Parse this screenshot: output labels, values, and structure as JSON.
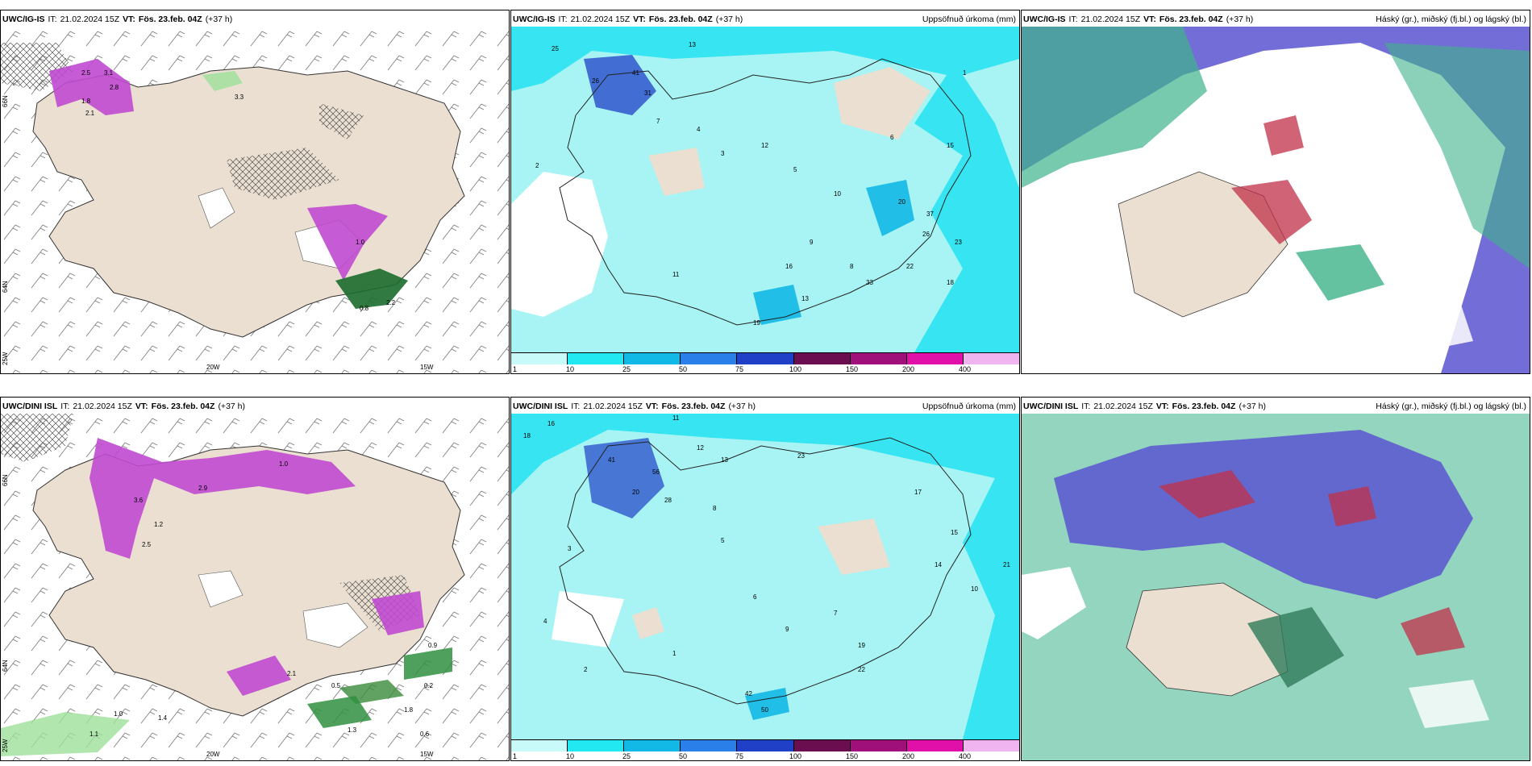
{
  "panels": [
    {
      "model": "UWC/IG-IS",
      "it_label": "IT:",
      "it_value": "21.02.2024 15Z",
      "vt_label": "VT:",
      "vt_value": "Fös. 23.feb. 04Z",
      "lead": "(+37 h)",
      "title_right": "",
      "type": "precip-type",
      "values": [
        "2.5",
        "3.1",
        "2.8",
        "1.8",
        "2.1",
        "3.3",
        "0.8",
        "1.0",
        "2.2"
      ],
      "lon_labels": [
        "20W",
        "15W"
      ],
      "lat_labels": [
        "66N",
        "64N",
        "25W"
      ]
    },
    {
      "model": "UWC/IG-IS",
      "it_label": "IT:",
      "it_value": "21.02.2024 15Z",
      "vt_label": "VT:",
      "vt_value": "Fös. 23.feb. 04Z",
      "lead": "(+37 h)",
      "title_right": "Uppsöfnuð úrkoma (mm)",
      "type": "accum-precip",
      "values": [
        "25",
        "13",
        "41",
        "31",
        "26",
        "7",
        "4",
        "2",
        "3",
        "12",
        "5",
        "10",
        "6",
        "15",
        "20",
        "37",
        "26",
        "23",
        "22",
        "18",
        "19",
        "33",
        "13",
        "16",
        "8",
        "9",
        "1",
        "11"
      ],
      "colorbar": [
        "1",
        "10",
        "25",
        "50",
        "75",
        "100",
        "150",
        "200",
        "400"
      ]
    },
    {
      "model": "UWC/IG-IS",
      "it_label": "IT:",
      "it_value": "21.02.2024 15Z",
      "vt_label": "VT:",
      "vt_value": "Fös. 23.feb. 04Z",
      "lead": "(+37 h)",
      "title_right": "Háský (gr.), miðský (fj.bl.) og lágský (bl.)",
      "type": "clouds"
    },
    {
      "model": "UWC/DINI ISL",
      "it_label": "IT:",
      "it_value": "21.02.2024 15Z",
      "vt_label": "VT:",
      "vt_value": "Fös. 23.feb. 04Z",
      "lead": "(+37 h)",
      "title_right": "",
      "type": "precip-type",
      "values": [
        "3.6",
        "2.9",
        "2.5",
        "1.2",
        "1.0",
        "0.9",
        "0.5",
        "1.4",
        "1.1",
        "1.3",
        "0.2",
        "0.6",
        "1.0",
        "2.1",
        "1.8"
      ],
      "lon_labels": [
        "20W",
        "15W"
      ],
      "lat_labels": [
        "66N",
        "64N",
        "25W"
      ]
    },
    {
      "model": "UWC/DINI ISL",
      "it_label": "IT:",
      "it_value": "21.02.2024 15Z",
      "vt_label": "VT:",
      "vt_value": "Fös. 23.feb. 04Z",
      "lead": "(+37 h)",
      "title_right": "Uppsöfnuð úrkoma (mm)",
      "type": "accum-precip",
      "values": [
        "18",
        "16",
        "11",
        "12",
        "13",
        "41",
        "56",
        "20",
        "28",
        "23",
        "17",
        "15",
        "10",
        "14",
        "8",
        "5",
        "3",
        "2",
        "4",
        "6",
        "42",
        "50",
        "19",
        "21",
        "22",
        "9",
        "7",
        "1"
      ],
      "colorbar": [
        "1",
        "10",
        "25",
        "50",
        "75",
        "100",
        "150",
        "200",
        "400"
      ]
    },
    {
      "model": "UWC/DINI ISL",
      "it_label": "IT:",
      "it_value": "21.02.2024 15Z",
      "vt_label": "VT:",
      "vt_value": "Fös. 23.feb. 04Z",
      "lead": "(+37 h)",
      "title_right": "Háský (gr.), miðský (fj.bl.) og lágský (bl.)",
      "type": "clouds"
    }
  ],
  "colors": {
    "land": "#eadfd0",
    "precip_pink": "#c04ad0",
    "precip_green": "#2f8f3f",
    "accum_bg": "#a8f4f4",
    "accum_mid": "#22e2f0",
    "accum_blue": "#1aa3e0",
    "cloud_high": "#3db38a",
    "cloud_mid": "#5a55d0",
    "cloud_low": "#c03048"
  },
  "colorbar_colors": [
    "#c8fafa",
    "#22e8f2",
    "#12b8e6",
    "#2a7fe8",
    "#2040c8",
    "#6a0e50",
    "#a0107a",
    "#e010a8",
    "#f0b4f0"
  ]
}
